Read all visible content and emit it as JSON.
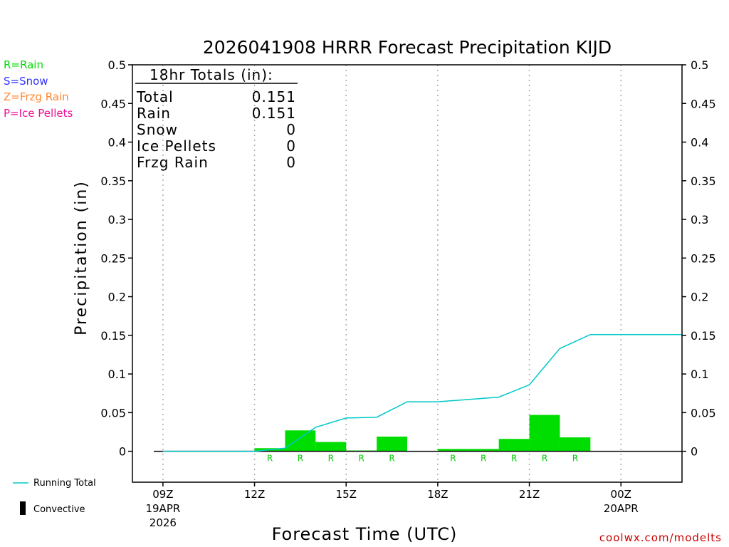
{
  "chart_data": {
    "type": "bar",
    "title": "2026041908 HRRR Forecast Precipitation KIJD",
    "xlabel": "Forecast Time (UTC)",
    "ylabel": "Precipitation (in)",
    "ylim": [
      -0.04,
      0.5
    ],
    "xlim": [
      -1,
      17
    ],
    "y_ticks": [
      "0",
      "0.05",
      "0.1",
      "0.15",
      "0.2",
      "0.25",
      "0.3",
      "0.35",
      "0.4",
      "0.45",
      "0.5"
    ],
    "x_ticks": [
      {
        "hour": 0,
        "label": "09Z",
        "sub1": "19APR",
        "sub2": "2026"
      },
      {
        "hour": 3,
        "label": "12Z",
        "sub1": "",
        "sub2": ""
      },
      {
        "hour": 6,
        "label": "15Z",
        "sub1": "",
        "sub2": ""
      },
      {
        "hour": 9,
        "label": "18Z",
        "sub1": "",
        "sub2": ""
      },
      {
        "hour": 12,
        "label": "21Z",
        "sub1": "",
        "sub2": ""
      },
      {
        "hour": 15,
        "label": "00Z",
        "sub1": "20APR",
        "sub2": ""
      }
    ],
    "hourly_bars": {
      "hours": [
        1,
        2,
        3,
        4,
        5,
        6,
        7,
        8,
        9,
        10,
        11,
        12,
        13,
        14,
        15,
        16
      ],
      "values": [
        0,
        0,
        0,
        0.004,
        0.027,
        0.012,
        0.001,
        0.019,
        0,
        0.003,
        0.003,
        0.016,
        0.047,
        0.018,
        0,
        0
      ],
      "ptype": [
        "",
        "",
        "",
        "R",
        "R",
        "R",
        "R",
        "R",
        "",
        "R",
        "R",
        "R",
        "R",
        "R",
        "",
        ""
      ]
    },
    "running_total": {
      "hours": [
        0,
        1,
        2,
        3,
        4,
        5,
        6,
        7,
        8,
        9,
        10,
        11,
        12,
        13,
        14,
        15,
        16,
        17
      ],
      "values": [
        0,
        0,
        0,
        0,
        0.004,
        0.031,
        0.043,
        0.044,
        0.064,
        0.064,
        0.067,
        0.07,
        0.086,
        0.133,
        0.151,
        0.151,
        0.151,
        0.151
      ]
    }
  },
  "totals_box": {
    "title": "18hr Totals (in):",
    "rows": [
      {
        "label": "Total",
        "value": "0.151"
      },
      {
        "label": "Rain",
        "value": "0.151"
      },
      {
        "label": "Snow",
        "value": "0"
      },
      {
        "label": "Ice Pellets",
        "value": "0"
      },
      {
        "label": "Frzg Rain",
        "value": "0"
      }
    ]
  },
  "legend": {
    "rain": "R=Rain",
    "snow": "S=Snow",
    "frzg_rain": "Z=Frzg Rain",
    "ice_pellets": "P=Ice Pellets",
    "running_total": "Running Total",
    "convective": "Convective"
  },
  "colors": {
    "rain": "#00dd00",
    "snow": "#3333ff",
    "frzg_rain": "#ff8833",
    "ice_pellets": "#ee1199",
    "running_total": "#00c8c8",
    "credit": "#cc0000"
  },
  "credit": "coolwx.com/modelts"
}
